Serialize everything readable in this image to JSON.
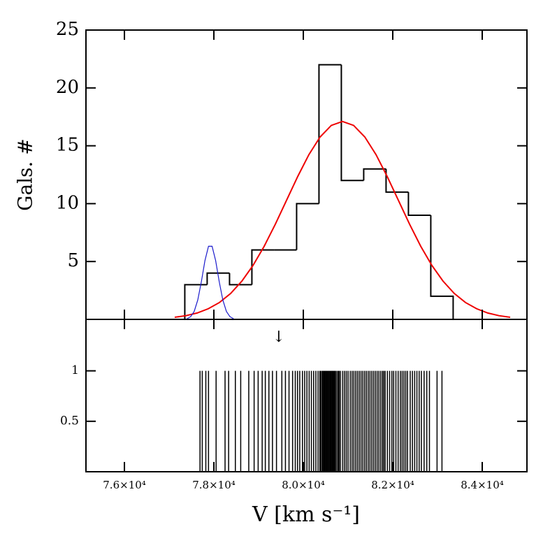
{
  "chart_data": [
    {
      "type": "histogram",
      "ylabel": "Gals. #",
      "color": "#000000",
      "bins": [
        77350,
        77850,
        78350,
        78850,
        79350,
        79850,
        80350,
        80850,
        81350,
        81850,
        82350,
        82850,
        83350
      ],
      "values": [
        3,
        4,
        3,
        6,
        6,
        10,
        22,
        12,
        13,
        11,
        9,
        2
      ],
      "xlim": [
        75140,
        85000
      ],
      "ylim": [
        0,
        25
      ],
      "yticks": [
        5,
        10,
        15,
        20,
        25
      ],
      "series": [
        {
          "color": "#ee0000",
          "x": [
            77125,
            77375,
            77625,
            77875,
            78125,
            78375,
            78625,
            78875,
            79125,
            79375,
            79625,
            79875,
            80125,
            80375,
            80625,
            80875,
            81125,
            81375,
            81625,
            81875,
            82125,
            82375,
            82625,
            82875,
            83125,
            83375,
            83625,
            83875,
            84125,
            84375,
            84625
          ],
          "values": [
            0.18,
            0.32,
            0.55,
            0.92,
            1.46,
            2.24,
            3.3,
            4.66,
            6.32,
            8.23,
            10.29,
            12.35,
            14.24,
            15.76,
            16.76,
            17.1,
            16.76,
            15.76,
            14.24,
            12.35,
            10.29,
            8.23,
            6.32,
            4.66,
            3.3,
            2.24,
            1.46,
            0.92,
            0.55,
            0.32,
            0.18
          ]
        },
        {
          "color": "#1a1acc",
          "x": [
            77400,
            77480,
            77560,
            77640,
            77720,
            77800,
            77880,
            77960,
            78040,
            78120,
            78200,
            78280,
            78360,
            78440
          ],
          "values": [
            0.06,
            0.23,
            0.69,
            1.68,
            3.25,
            5.07,
            6.32,
            6.32,
            5.07,
            3.25,
            1.68,
            0.69,
            0.23,
            0.06
          ]
        }
      ]
    },
    {
      "type": "rug",
      "xlabel": "V [km s⁻¹]",
      "color": "#000000",
      "xlim": [
        75140,
        85000
      ],
      "ylim": [
        0,
        1.51
      ],
      "yticks": [
        0.5,
        1
      ],
      "xticks": [
        {
          "value": 76000,
          "label": "7.6×10⁴"
        },
        {
          "value": 78000,
          "label": "7.8×10⁴"
        },
        {
          "value": 80000,
          "label": "8.0×10⁴"
        },
        {
          "value": 82000,
          "label": "8.2×10⁴"
        },
        {
          "value": 84000,
          "label": "8.4×10⁴"
        }
      ],
      "annotations": [
        {
          "text": "↓",
          "x": 79450
        }
      ],
      "x": [
        77690,
        77740,
        77820,
        77880,
        78050,
        78250,
        78330,
        78480,
        78600,
        78780,
        78900,
        78990,
        79080,
        79150,
        79230,
        79310,
        79400,
        79520,
        79600,
        79680,
        79760,
        79820,
        79870,
        79920,
        79980,
        80030,
        80080,
        80130,
        80180,
        80230,
        80280,
        80330,
        80370,
        80390,
        80420,
        80440,
        80460,
        80480,
        80500,
        80520,
        80540,
        80560,
        80580,
        80600,
        80620,
        80640,
        80660,
        80680,
        80700,
        80720,
        80750,
        80780,
        80800,
        80830,
        80880,
        80920,
        80960,
        81000,
        81050,
        81090,
        81130,
        81170,
        81210,
        81250,
        81290,
        81330,
        81370,
        81410,
        81450,
        81490,
        81530,
        81570,
        81610,
        81650,
        81690,
        81730,
        81770,
        81800,
        81830,
        81880,
        81930,
        81980,
        82020,
        82070,
        82120,
        82170,
        82210,
        82250,
        82290,
        82330,
        82390,
        82440,
        82490,
        82540,
        82590,
        82640,
        82700,
        82760,
        82820,
        82990,
        83100
      ],
      "values": [
        1,
        1,
        1,
        1,
        1,
        1,
        1,
        1,
        1,
        1,
        1,
        1,
        1,
        1,
        1,
        1,
        1,
        1,
        1,
        1,
        1,
        1,
        1,
        1,
        1,
        1,
        1,
        1,
        1,
        1,
        1,
        1,
        1,
        1,
        1,
        1,
        1,
        1,
        1,
        1,
        1,
        1,
        1,
        1,
        1,
        1,
        1,
        1,
        1,
        1,
        1,
        1,
        1,
        1,
        1,
        1,
        1,
        1,
        1,
        1,
        1,
        1,
        1,
        1,
        1,
        1,
        1,
        1,
        1,
        1,
        1,
        1,
        1,
        1,
        1,
        1,
        1,
        1,
        1,
        1,
        1,
        1,
        1,
        1,
        1,
        1,
        1,
        1,
        1,
        1,
        1,
        1,
        1,
        1,
        1,
        1,
        1,
        1,
        1,
        1,
        1
      ]
    }
  ]
}
